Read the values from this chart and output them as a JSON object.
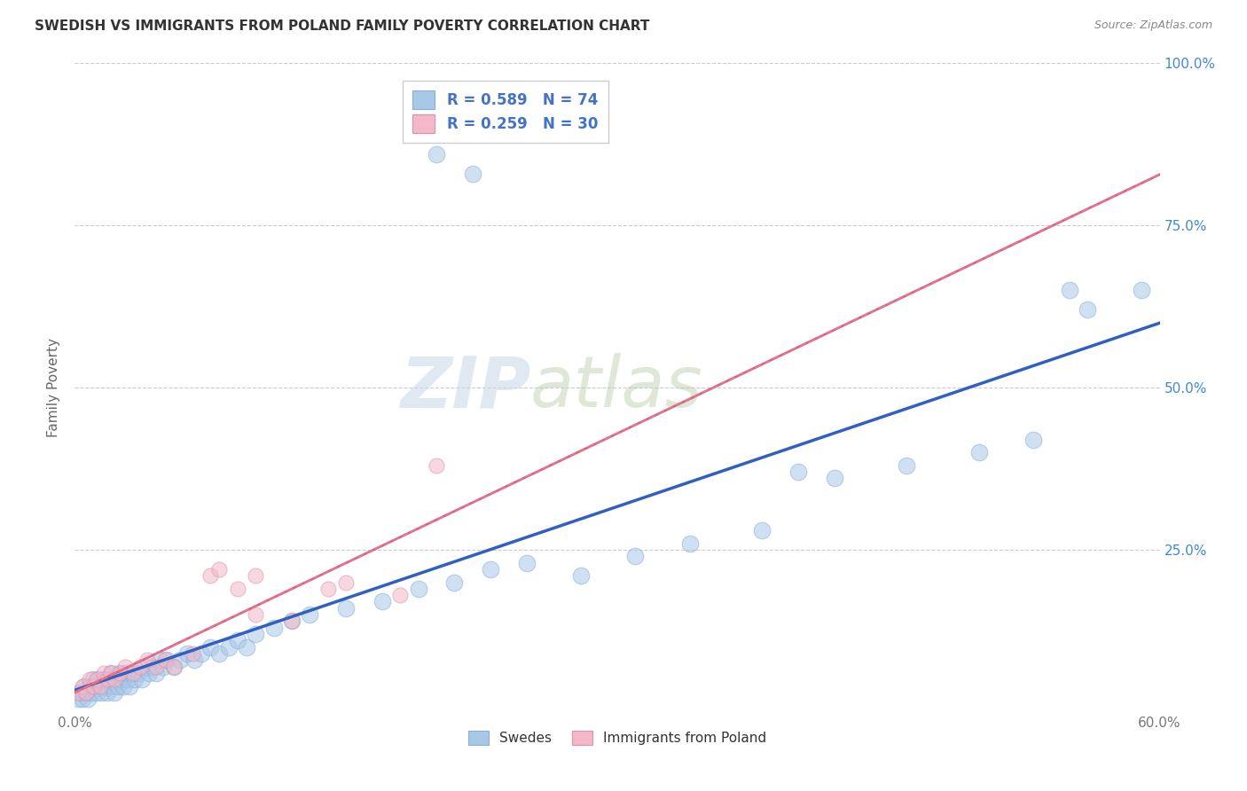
{
  "title": "SWEDISH VS IMMIGRANTS FROM POLAND FAMILY POVERTY CORRELATION CHART",
  "source": "Source: ZipAtlas.com",
  "ylabel": "Family Poverty",
  "watermark_zip": "ZIP",
  "watermark_atlas": "atlas",
  "xlim": [
    0.0,
    0.6
  ],
  "ylim": [
    0.0,
    1.0
  ],
  "xtick_positions": [
    0.0,
    0.1,
    0.2,
    0.3,
    0.4,
    0.5,
    0.6
  ],
  "xticklabels": [
    "0.0%",
    "",
    "",
    "",
    "",
    "",
    "60.0%"
  ],
  "ytick_positions": [
    0.0,
    0.25,
    0.5,
    0.75,
    1.0
  ],
  "yticklabels_right": [
    "",
    "25.0%",
    "50.0%",
    "75.0%",
    "100.0%"
  ],
  "legend_r_blue": "R = 0.589",
  "legend_n_blue": "N = 74",
  "legend_r_pink": "R = 0.259",
  "legend_n_pink": "N = 30",
  "legend_label_blue": "Swedes",
  "legend_label_pink": "Immigrants from Poland",
  "blue_color": "#a8c8e8",
  "pink_color": "#f4b8c8",
  "blue_line_color": "#3060c0",
  "pink_line_color": "#e06080",
  "pink_dash_color": "#e08898",
  "background_color": "#ffffff",
  "grid_color": "#cccccc",
  "legend_text_blue": "#4472c4",
  "legend_text_n": "#333333",
  "swedes_x": [
    0.002,
    0.003,
    0.004,
    0.005,
    0.006,
    0.007,
    0.008,
    0.009,
    0.01,
    0.011,
    0.012,
    0.013,
    0.014,
    0.015,
    0.016,
    0.017,
    0.018,
    0.019,
    0.02,
    0.021,
    0.022,
    0.023,
    0.024,
    0.025,
    0.026,
    0.027,
    0.028,
    0.029,
    0.03,
    0.031,
    0.033,
    0.035,
    0.037,
    0.039,
    0.041,
    0.043,
    0.045,
    0.047,
    0.049,
    0.051,
    0.055,
    0.058,
    0.062,
    0.066,
    0.07,
    0.075,
    0.08,
    0.085,
    0.09,
    0.095,
    0.1,
    0.11,
    0.12,
    0.13,
    0.15,
    0.17,
    0.19,
    0.21,
    0.23,
    0.25,
    0.28,
    0.31,
    0.34,
    0.38,
    0.42,
    0.46,
    0.5,
    0.53,
    0.56,
    0.59,
    0.2,
    0.22,
    0.4,
    0.55
  ],
  "swedes_y": [
    0.02,
    0.03,
    0.02,
    0.04,
    0.03,
    0.02,
    0.04,
    0.03,
    0.05,
    0.04,
    0.03,
    0.05,
    0.04,
    0.03,
    0.05,
    0.04,
    0.03,
    0.05,
    0.06,
    0.04,
    0.03,
    0.05,
    0.04,
    0.06,
    0.05,
    0.04,
    0.06,
    0.05,
    0.04,
    0.06,
    0.05,
    0.06,
    0.05,
    0.07,
    0.06,
    0.07,
    0.06,
    0.08,
    0.07,
    0.08,
    0.07,
    0.08,
    0.09,
    0.08,
    0.09,
    0.1,
    0.09,
    0.1,
    0.11,
    0.1,
    0.12,
    0.13,
    0.14,
    0.15,
    0.16,
    0.17,
    0.19,
    0.2,
    0.22,
    0.23,
    0.21,
    0.24,
    0.26,
    0.28,
    0.36,
    0.38,
    0.4,
    0.42,
    0.62,
    0.65,
    0.86,
    0.83,
    0.37,
    0.65
  ],
  "poland_x": [
    0.002,
    0.004,
    0.006,
    0.008,
    0.01,
    0.012,
    0.014,
    0.016,
    0.018,
    0.02,
    0.022,
    0.025,
    0.028,
    0.032,
    0.036,
    0.04,
    0.045,
    0.05,
    0.055,
    0.065,
    0.075,
    0.09,
    0.1,
    0.12,
    0.14,
    0.08,
    0.1,
    0.15,
    0.18,
    0.2
  ],
  "poland_y": [
    0.03,
    0.04,
    0.03,
    0.05,
    0.04,
    0.05,
    0.04,
    0.06,
    0.05,
    0.06,
    0.05,
    0.06,
    0.07,
    0.06,
    0.07,
    0.08,
    0.07,
    0.08,
    0.07,
    0.09,
    0.21,
    0.19,
    0.15,
    0.14,
    0.19,
    0.22,
    0.21,
    0.2,
    0.18,
    0.38
  ]
}
